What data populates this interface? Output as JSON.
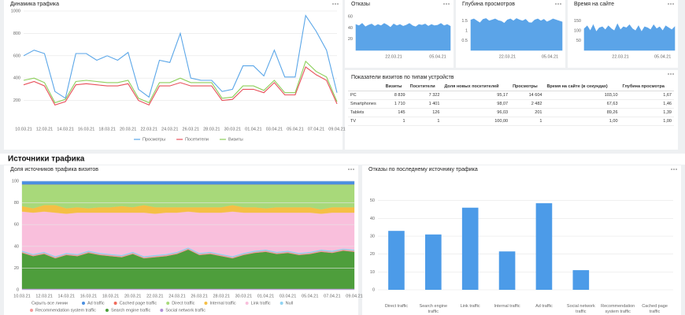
{
  "section_title": "Источники трафика",
  "chart_data": [
    {
      "type": "line",
      "title": "Динамика трафика",
      "legend": "bottom",
      "grid": true,
      "categories": [
        "10.03.21",
        null,
        "12.03.21",
        null,
        "14.03.21",
        null,
        "16.03.21",
        null,
        "18.03.21",
        null,
        "20.03.21",
        null,
        "22.03.21",
        null,
        "24.03.21",
        null,
        "26.03.21",
        null,
        "28.03.21",
        null,
        "30.03.21",
        null,
        "01.04.21",
        null,
        "03.04.21",
        null,
        "05.04.21",
        null,
        "07.04.21",
        null,
        "09.04.21"
      ],
      "ylim": [
        0,
        1000
      ],
      "yticks": [
        200,
        400,
        600,
        800,
        1000
      ],
      "series": [
        {
          "name": "Просмотры",
          "color": "#5aa6e8",
          "values": [
            600,
            650,
            620,
            280,
            220,
            620,
            620,
            560,
            600,
            560,
            630,
            300,
            230,
            560,
            540,
            800,
            400,
            380,
            380,
            280,
            300,
            510,
            510,
            420,
            650,
            410,
            410,
            960,
            820,
            650,
            270
          ]
        },
        {
          "name": "Посетители",
          "color": "#e8505b",
          "values": [
            340,
            370,
            330,
            160,
            190,
            340,
            350,
            340,
            330,
            330,
            350,
            200,
            160,
            330,
            330,
            360,
            330,
            330,
            330,
            200,
            210,
            300,
            300,
            270,
            360,
            250,
            250,
            500,
            430,
            380,
            170
          ]
        },
        {
          "name": "Визиты",
          "color": "#8ccf5a",
          "values": [
            380,
            400,
            360,
            180,
            210,
            370,
            380,
            370,
            360,
            360,
            380,
            220,
            180,
            360,
            360,
            400,
            360,
            360,
            360,
            220,
            230,
            330,
            330,
            290,
            380,
            270,
            270,
            550,
            460,
            410,
            190
          ]
        }
      ]
    },
    {
      "type": "area",
      "title": "Отказы",
      "color": "#5ba4e8",
      "grid": false,
      "categories": [
        null,
        null,
        null,
        null,
        null,
        null,
        null,
        null,
        null,
        null,
        null,
        null,
        "22.03.21",
        null,
        null,
        null,
        null,
        null,
        null,
        null,
        null,
        null,
        null,
        null,
        null,
        null,
        "05.04.21",
        null,
        null,
        null,
        null
      ],
      "ylim": [
        0,
        70
      ],
      "yticks": [
        20,
        40,
        60
      ],
      "values": [
        46,
        44,
        48,
        42,
        45,
        47,
        43,
        46,
        44,
        48,
        45,
        41,
        47,
        44,
        46,
        43,
        45,
        48,
        44,
        42,
        46,
        45,
        47,
        43,
        46,
        44,
        45,
        48,
        44,
        46,
        43
      ]
    },
    {
      "type": "area",
      "title": "Глубина просмотров",
      "color": "#5ba4e8",
      "grid": false,
      "categories": [
        null,
        null,
        null,
        null,
        null,
        null,
        null,
        null,
        null,
        null,
        null,
        null,
        "22.03.21",
        null,
        null,
        null,
        null,
        null,
        null,
        null,
        null,
        null,
        null,
        null,
        null,
        null,
        "05.04.21",
        null,
        null,
        null,
        null
      ],
      "ylim": [
        0,
        2
      ],
      "yticks": [
        0.5,
        1,
        1.5
      ],
      "values": [
        1.55,
        1.6,
        1.5,
        1.4,
        1.58,
        1.62,
        1.5,
        1.55,
        1.6,
        1.52,
        1.48,
        1.38,
        1.55,
        1.6,
        1.5,
        1.62,
        1.55,
        1.5,
        1.58,
        1.42,
        1.4,
        1.55,
        1.6,
        1.5,
        1.58,
        1.45,
        1.52,
        1.6,
        1.55,
        1.5,
        1.45
      ]
    },
    {
      "type": "area",
      "title": "Время на сайте",
      "color": "#5ba4e8",
      "grid": false,
      "categories": [
        null,
        null,
        null,
        null,
        null,
        null,
        null,
        null,
        null,
        null,
        null,
        null,
        "22.03.21",
        null,
        null,
        null,
        null,
        null,
        null,
        null,
        null,
        null,
        null,
        null,
        null,
        null,
        "05.04.21",
        null,
        null,
        null,
        null
      ],
      "ylim": [
        0,
        200
      ],
      "yticks": [
        50,
        100,
        150
      ],
      "values": [
        110,
        125,
        100,
        130,
        95,
        115,
        120,
        105,
        125,
        110,
        100,
        135,
        105,
        120,
        115,
        130,
        110,
        100,
        125,
        95,
        120,
        115,
        105,
        130,
        110,
        120,
        100,
        125,
        115,
        105,
        120
      ]
    },
    {
      "type": "stacked_area",
      "title": "Доля источников трафика визитов",
      "hide_all_label": "Скрыть все линии",
      "legend": "bottom",
      "grid": true,
      "categories": [
        "10.03.21",
        null,
        "12.03.21",
        null,
        "14.03.21",
        null,
        "16.03.21",
        null,
        "18.03.21",
        null,
        "20.03.21",
        null,
        "22.03.21",
        null,
        "24.03.21",
        null,
        "26.03.21",
        null,
        "28.03.21",
        null,
        "30.03.21",
        null,
        "01.04.21",
        null,
        "03.04.21",
        null,
        "05.04.21",
        null,
        "07.04.21",
        null,
        "09.04.21"
      ],
      "ylim": [
        0,
        100
      ],
      "yticks": [
        0,
        20,
        40,
        60,
        80,
        100
      ],
      "series": [
        {
          "name": "Ad traffic",
          "color": "#4a8fe0",
          "values": [
            3,
            3,
            3,
            3,
            3,
            3,
            3,
            3,
            3,
            3,
            3,
            3,
            3,
            3,
            3,
            3,
            3,
            3,
            3,
            3,
            3,
            3,
            3,
            3,
            3,
            3,
            3,
            3,
            3,
            3,
            3
          ]
        },
        {
          "name": "Cached page traffic",
          "color": "#f06a5a",
          "values": [
            0,
            0,
            0,
            0,
            0,
            0,
            0,
            0,
            0,
            0,
            0,
            0,
            0,
            0,
            0,
            0,
            0,
            0,
            0,
            0,
            0,
            0,
            0,
            0,
            0,
            0,
            0,
            0,
            0,
            0,
            0
          ]
        },
        {
          "name": "Direct traffic",
          "color": "#a8d97a",
          "values": [
            20,
            22,
            19,
            19,
            22,
            21,
            22,
            21,
            21,
            20,
            21,
            19,
            21,
            21,
            21,
            21,
            21,
            21,
            21,
            19,
            21,
            21,
            22,
            21,
            21,
            21,
            21,
            23,
            21,
            21,
            21
          ]
        },
        {
          "name": "Internal traffic",
          "color": "#f5bf45",
          "values": [
            5,
            4,
            6,
            7,
            5,
            5,
            4,
            5,
            5,
            6,
            5,
            7,
            6,
            5,
            5,
            4,
            5,
            5,
            5,
            6,
            5,
            5,
            4,
            5,
            5,
            5,
            5,
            4,
            5,
            5,
            5
          ]
        },
        {
          "name": "Link traffic",
          "color": "#f9bfdc",
          "values": [
            36,
            38,
            37,
            40,
            36,
            38,
            35,
            37,
            38,
            39,
            36,
            40,
            38,
            38,
            36,
            33,
            37,
            36,
            38,
            41,
            37,
            35,
            34,
            36,
            35,
            37,
            36,
            33,
            35,
            33,
            34
          ]
        },
        {
          "name": "Null",
          "color": "#8fd3f2",
          "values": [
            1,
            1,
            1,
            1,
            1,
            1,
            1,
            1,
            1,
            1,
            1,
            1,
            1,
            1,
            1,
            1,
            1,
            1,
            1,
            1,
            1,
            1,
            1,
            1,
            1,
            1,
            1,
            1,
            1,
            1,
            1
          ]
        },
        {
          "name": "Recommendation system traffic",
          "color": "#f59a9a",
          "values": [
            1,
            1,
            1,
            1,
            1,
            1,
            1,
            1,
            1,
            1,
            1,
            1,
            1,
            1,
            1,
            1,
            1,
            1,
            1,
            1,
            1,
            1,
            1,
            1,
            1,
            1,
            1,
            1,
            1,
            1,
            1
          ]
        },
        {
          "name": "Search engine traffic",
          "color": "#4e9e3c",
          "values": [
            33,
            30,
            32,
            28,
            31,
            30,
            33,
            31,
            30,
            29,
            32,
            28,
            29,
            30,
            32,
            36,
            31,
            32,
            30,
            28,
            31,
            33,
            34,
            32,
            33,
            31,
            32,
            34,
            33,
            35,
            34
          ]
        },
        {
          "name": "Social network traffic",
          "color": "#b28fd6",
          "values": [
            1,
            1,
            1,
            1,
            1,
            1,
            1,
            1,
            1,
            1,
            1,
            1,
            1,
            1,
            1,
            1,
            1,
            1,
            1,
            1,
            1,
            1,
            1,
            1,
            1,
            1,
            1,
            1,
            1,
            1,
            1
          ]
        }
      ]
    },
    {
      "type": "bar",
      "title": "Отказы по последнему источнику трафика",
      "color": "#4c9be8",
      "grid": true,
      "categories": [
        "Direct traffic",
        "Search engine traffic",
        "Link traffic",
        "Internal traffic",
        "Ad traffic",
        "Social network traffic",
        "Recommendation system traffic",
        "Cached page traffic"
      ],
      "values": [
        33,
        31,
        46,
        21.5,
        48.5,
        11,
        null,
        null
      ],
      "ylim": [
        0,
        60
      ],
      "yticks": [
        0,
        10,
        20,
        30,
        40,
        50
      ]
    }
  ],
  "table": {
    "title": "Показатели визитов по типам устройств",
    "header": [
      "Визиты",
      "Посетители",
      "Доля новых посетителей",
      "Просмотры",
      "Время на сайте (в секундах)",
      "Глубина просмотра"
    ],
    "rows": [
      [
        "PC",
        "8 839",
        "7 322",
        "95,17",
        "14 604",
        "103,10",
        "1,67"
      ],
      [
        "Smartphones",
        "1 710",
        "1 401",
        "98,07",
        "2 482",
        "67,63",
        "1,46"
      ],
      [
        "Tablets",
        "145",
        "126",
        "96,03",
        "201",
        "89,26",
        "1,39"
      ],
      [
        "TV",
        "1",
        "1",
        "100,00",
        "1",
        "1,00",
        "1,00"
      ]
    ]
  }
}
